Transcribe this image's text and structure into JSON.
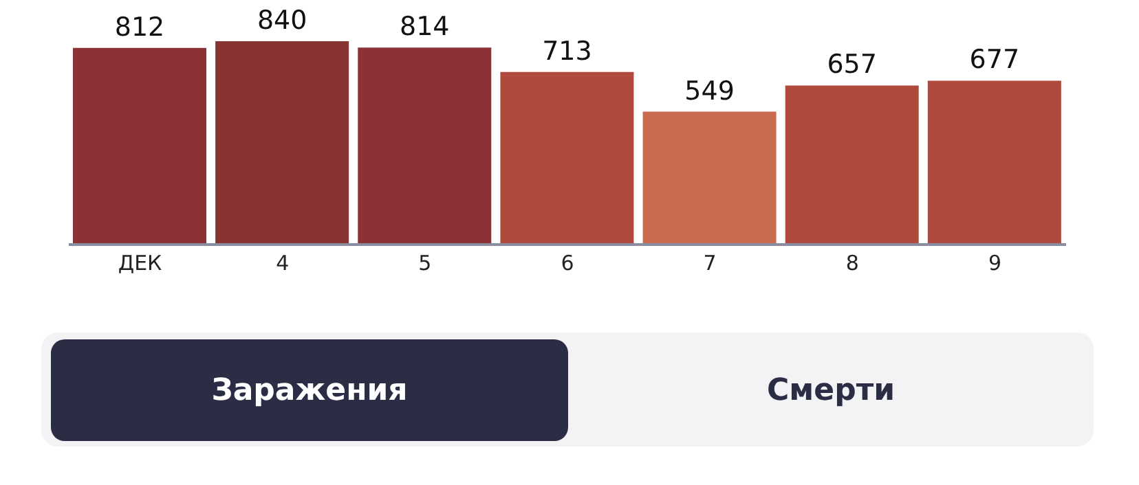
{
  "chart_data": {
    "type": "bar",
    "categories": [
      "ДЕК",
      "4",
      "5",
      "6",
      "7",
      "8",
      "9"
    ],
    "values": [
      812,
      840,
      814,
      713,
      549,
      657,
      677
    ],
    "colors": [
      "#8b3236",
      "#873433",
      "#8b3236",
      "#b04a3c",
      "#c86b50",
      "#b04a3c",
      "#b04a3c"
    ],
    "data_labels": true,
    "tick_labels": "x",
    "annotations": [
      "Заражения",
      "Смерти"
    ]
  }
}
